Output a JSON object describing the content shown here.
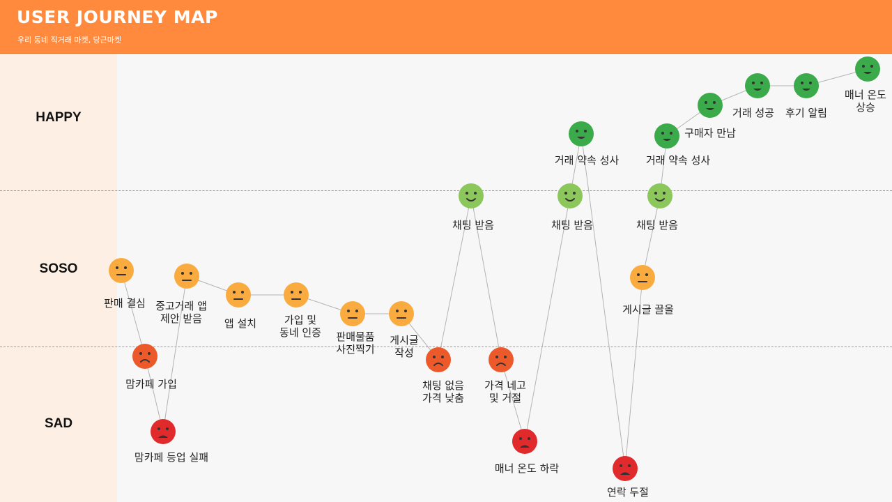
{
  "header": {
    "title": "USER JOURNEY MAP",
    "subtitle": "우리 동네 직거래 마켓, 당근마켓",
    "background": "#ff8a3d"
  },
  "levels": [
    {
      "key": "happy",
      "label": "HAPPY"
    },
    {
      "key": "soso",
      "label": "SOSO"
    },
    {
      "key": "sad",
      "label": "SAD"
    }
  ],
  "mood_colors": {
    "happy": "#3aaa4a",
    "content": "#8bc75a",
    "neutral": "#f9ab3f",
    "sad": "#ec5a2c",
    "very_sad": "#e02a2c"
  },
  "steps": [
    {
      "mood": "neutral",
      "label": [
        "판매 결심"
      ]
    },
    {
      "mood": "sad",
      "label": [
        "맘카페 가입"
      ]
    },
    {
      "mood": "very_sad",
      "label": [
        "맘카페 등업 실패"
      ]
    },
    {
      "mood": "neutral",
      "label": [
        "중고거래 앱",
        "제안 받음"
      ]
    },
    {
      "mood": "neutral",
      "label": [
        "앱 설치"
      ]
    },
    {
      "mood": "neutral",
      "label": [
        "가입 및",
        "동네 인증"
      ]
    },
    {
      "mood": "neutral",
      "label": [
        "판매물품",
        "사진찍기"
      ]
    },
    {
      "mood": "neutral",
      "label": [
        "게시글",
        "작성"
      ]
    },
    {
      "mood": "sad",
      "label": [
        "채팅 없음",
        "가격 낮춤"
      ]
    },
    {
      "mood": "content",
      "label": [
        "채팅 받음"
      ]
    },
    {
      "mood": "sad",
      "label": [
        "가격 네고",
        "및 거절"
      ]
    },
    {
      "mood": "very_sad",
      "label": [
        "매너 온도 하락"
      ]
    },
    {
      "mood": "content",
      "label": [
        "채팅 받음"
      ]
    },
    {
      "mood": "happy",
      "label": [
        "거래 약속 성사"
      ]
    },
    {
      "mood": "very_sad",
      "label": [
        "연락 두절"
      ]
    },
    {
      "mood": "neutral",
      "label": [
        "게시글 끌올"
      ]
    },
    {
      "mood": "content",
      "label": [
        "채팅 받음"
      ]
    },
    {
      "mood": "happy",
      "label": [
        "거래 약속 성사"
      ]
    },
    {
      "mood": "happy",
      "label": [
        "구매자 만남"
      ]
    },
    {
      "mood": "happy",
      "label": [
        "거래 성공"
      ]
    },
    {
      "mood": "happy",
      "label": [
        "후기 알림"
      ]
    },
    {
      "mood": "happy",
      "label": [
        "매너 온도",
        "상승"
      ]
    }
  ]
}
